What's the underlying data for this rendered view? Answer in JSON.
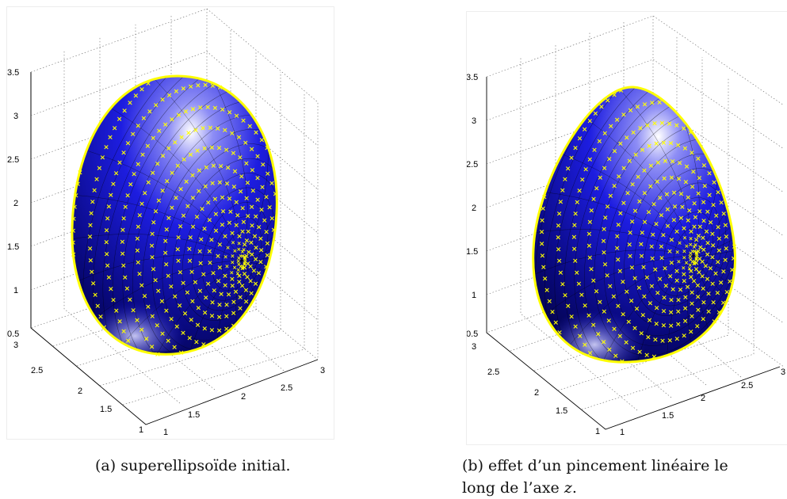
{
  "figures": [
    {
      "id": "a",
      "caption_label": "(a)",
      "caption_text": "superellipsoïde initial.",
      "z_ticks": [
        "0.5",
        "1",
        "1.5",
        "2",
        "2.5",
        "3",
        "3.5"
      ],
      "x_ticks": [
        "1",
        "1.5",
        "2",
        "2.5",
        "3"
      ],
      "y_ticks": [
        "1",
        "1.5",
        "2",
        "2.5",
        "3"
      ]
    },
    {
      "id": "b",
      "caption_label": "(b)",
      "caption_line1": "effet d’un pincement linéaire le",
      "caption_line2_pre": "long de l’axe ",
      "caption_axis": "z",
      "caption_line2_post": ".",
      "z_ticks": [
        "0.5",
        "1",
        "1.5",
        "2",
        "2.5",
        "3",
        "3.5"
      ],
      "x_ticks": [
        "1",
        "1.5",
        "2",
        "2.5",
        "3"
      ],
      "y_ticks": [
        "1",
        "1.5",
        "2",
        "2.5",
        "3"
      ]
    }
  ],
  "colors": {
    "surface": "#1a1ad0",
    "markers": "#ffff00",
    "highlight": "#ffffff"
  },
  "grid": "dotted"
}
